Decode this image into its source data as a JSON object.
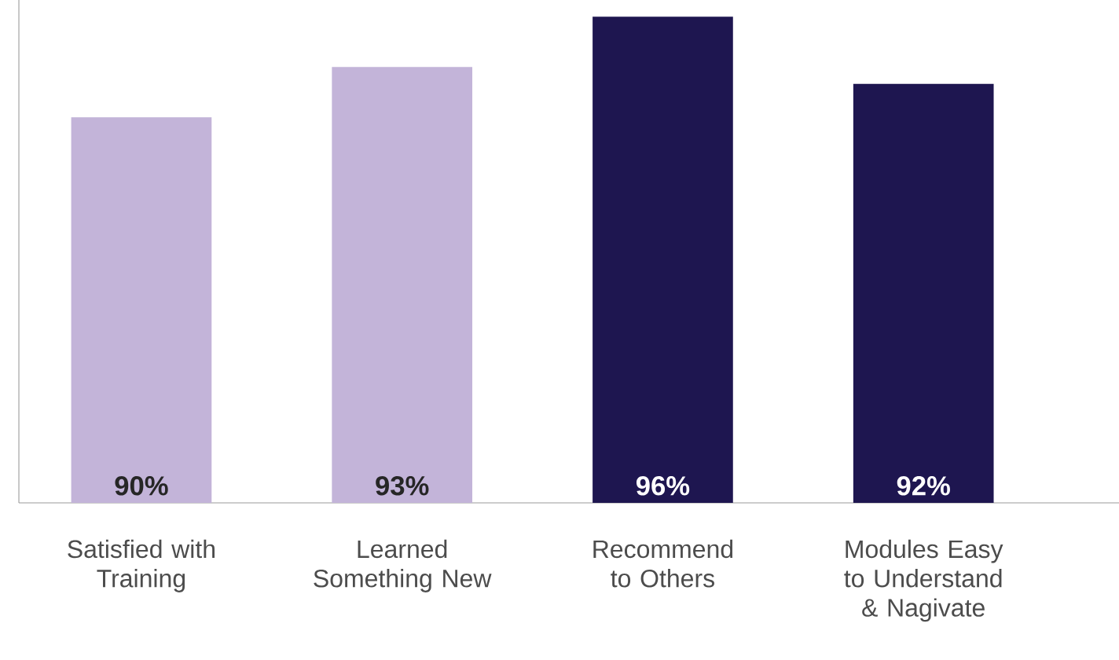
{
  "chart_data": {
    "type": "bar",
    "categories": [
      "Satisfied with Training",
      "Learned Something New",
      "Recommend to Others",
      "Modules Easy to Understand & Nagivate"
    ],
    "values": [
      90,
      93,
      96,
      92
    ],
    "value_labels": [
      "90%",
      "93%",
      "96%",
      "92%"
    ],
    "colors": [
      "#c3b4d9",
      "#c3b4d9",
      "#1e1650",
      "#1e1650"
    ],
    "ylim": [
      67,
      97
    ]
  }
}
